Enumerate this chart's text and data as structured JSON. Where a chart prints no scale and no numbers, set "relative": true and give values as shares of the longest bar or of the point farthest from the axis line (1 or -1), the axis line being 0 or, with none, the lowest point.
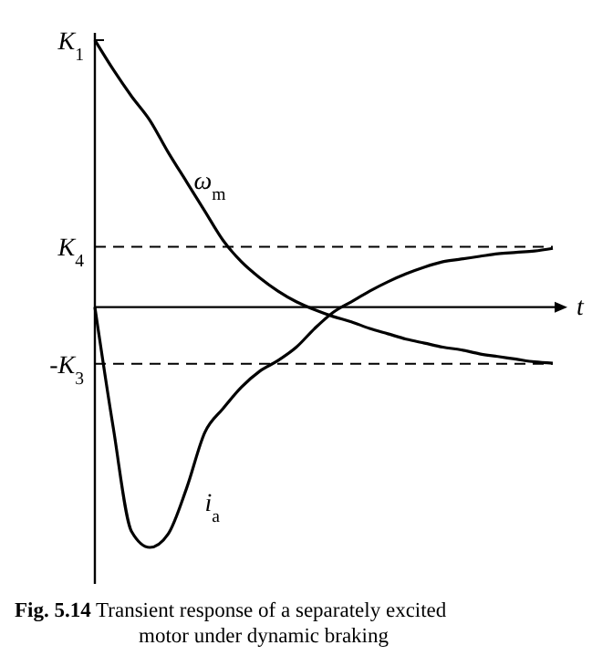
{
  "chart_data": {
    "type": "line",
    "relative": true,
    "xlabel": "t",
    "line_style": "solid",
    "categories": [
      null,
      null,
      null,
      null,
      null,
      null,
      null,
      null,
      null,
      null,
      null,
      null,
      null,
      null,
      null,
      null,
      null,
      null,
      null,
      null,
      null,
      null,
      null,
      null,
      null,
      null
    ],
    "series": [
      {
        "name": "ω$_{m}$",
        "color": "#000000",
        "values": [
          1.0,
          0.89,
          0.79,
          0.7,
          0.58,
          0.47,
          0.36,
          0.25,
          0.17,
          0.11,
          0.06,
          0.02,
          -0.01,
          -0.035,
          -0.055,
          -0.08,
          -0.1,
          -0.12,
          -0.135,
          -0.15,
          -0.16,
          -0.175,
          -0.185,
          -0.195,
          -0.205,
          -0.21
        ]
      },
      {
        "name": "i$_{a}$",
        "color": "#000000",
        "values": [
          0,
          -0.45,
          -0.84,
          -0.9,
          -0.85,
          -0.68,
          -0.47,
          -0.38,
          -0.3,
          -0.24,
          -0.2,
          -0.15,
          -0.08,
          -0.02,
          0.02,
          0.06,
          0.095,
          0.125,
          0.15,
          0.17,
          0.18,
          0.19,
          0.2,
          0.205,
          0.21,
          0.22
        ]
      }
    ],
    "ref_lines": [
      {
        "axis": "y",
        "value": 0.226,
        "label": "K$_{4}$",
        "line_style": "dashed"
      },
      {
        "axis": "y",
        "value": -0.212,
        "label": "-K$_{3}$",
        "line_style": "dashed"
      }
    ],
    "annotations": [
      "K$_{1}$",
      "Fig. 5.14 Transient response of a separately excited motor under dynamic braking"
    ]
  }
}
